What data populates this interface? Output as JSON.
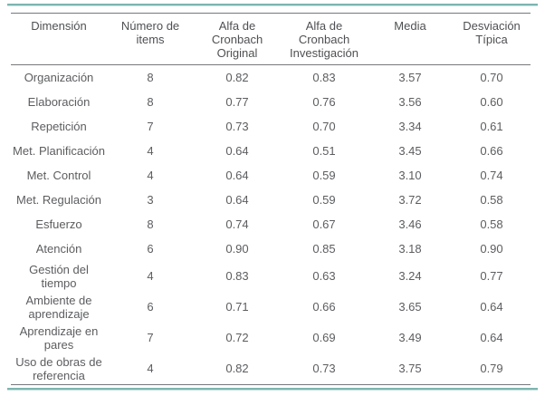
{
  "accent_color": "#7db5b0",
  "rule_color": "#77787b",
  "text_color": "#58595b",
  "table": {
    "headers": {
      "dimension": "Dimensión",
      "num_items": "Número de items",
      "alfa_original": "Alfa de Cronbach Original",
      "alfa_investigacion": "Alfa de Cronbach Investigación",
      "media": "Media",
      "desviacion": "Desviación Típica"
    },
    "rows": [
      {
        "dimension": "Organización",
        "items": "8",
        "alfa_original": "0.82",
        "alfa_investigacion": "0.83",
        "media": "3.57",
        "desviacion": "0.70"
      },
      {
        "dimension": "Elaboración",
        "items": "8",
        "alfa_original": "0.77",
        "alfa_investigacion": "0.76",
        "media": "3.56",
        "desviacion": "0.60"
      },
      {
        "dimension": "Repetición",
        "items": "7",
        "alfa_original": "0.73",
        "alfa_investigacion": "0.70",
        "media": "3.34",
        "desviacion": "0.61"
      },
      {
        "dimension": "Met. Planificación",
        "items": "4",
        "alfa_original": "0.64",
        "alfa_investigacion": "0.51",
        "media": "3.45",
        "desviacion": "0.66"
      },
      {
        "dimension": "Met. Control",
        "items": "4",
        "alfa_original": "0.64",
        "alfa_investigacion": "0.59",
        "media": "3.10",
        "desviacion": "0.74"
      },
      {
        "dimension": "Met. Regulación",
        "items": "3",
        "alfa_original": "0.64",
        "alfa_investigacion": "0.59",
        "media": "3.72",
        "desviacion": "0.58"
      },
      {
        "dimension": "Esfuerzo",
        "items": "8",
        "alfa_original": "0.74",
        "alfa_investigacion": "0.67",
        "media": "3.46",
        "desviacion": "0.58"
      },
      {
        "dimension": "Atención",
        "items": "6",
        "alfa_original": "0.90",
        "alfa_investigacion": "0.85",
        "media": "3.18",
        "desviacion": "0.90"
      },
      {
        "dimension": "Gestión del tiempo",
        "items": "4",
        "alfa_original": "0.83",
        "alfa_investigacion": "0.63",
        "media": "3.24",
        "desviacion": "0.77"
      },
      {
        "dimension": "Ambiente de aprendizaje",
        "items": "6",
        "alfa_original": "0.71",
        "alfa_investigacion": "0.66",
        "media": "3.65",
        "desviacion": "0.64"
      },
      {
        "dimension": "Aprendizaje en pares",
        "items": "7",
        "alfa_original": "0.72",
        "alfa_investigacion": "0.69",
        "media": "3.49",
        "desviacion": "0.64"
      },
      {
        "dimension": "Uso de obras de referencia",
        "items": "4",
        "alfa_original": "0.82",
        "alfa_investigacion": "0.73",
        "media": "3.75",
        "desviacion": "0.79"
      }
    ]
  }
}
